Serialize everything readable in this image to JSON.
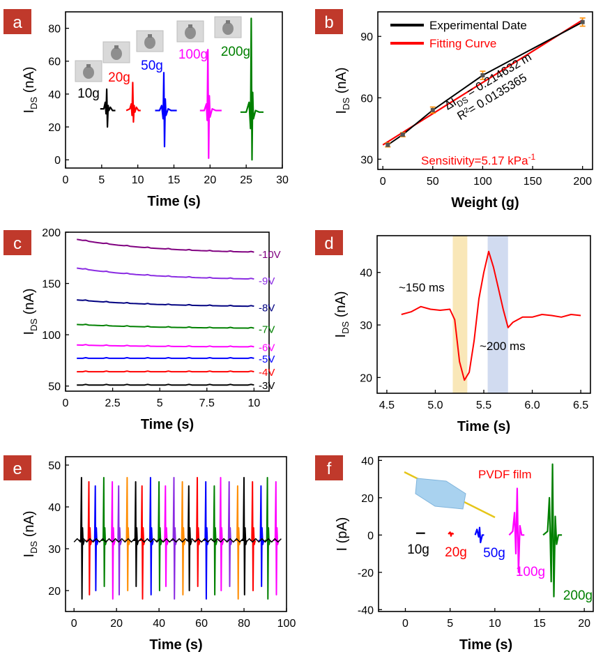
{
  "chart_data": [
    {
      "panel": "a",
      "type": "line",
      "xlabel": "Time (s)",
      "ylabel_main": "I",
      "ylabel_sub": "DS",
      "ylabel_unit": " (nA)",
      "xlim": [
        0,
        30
      ],
      "ylim": [
        -5,
        90
      ],
      "xticks": [
        "0",
        "5",
        "10",
        "15",
        "20",
        "25",
        "30"
      ],
      "xtick_values": [
        0,
        5,
        10,
        15,
        20,
        25,
        30
      ],
      "yticks": [
        "0",
        "20",
        "40",
        "60",
        "80"
      ],
      "ytick_values": [
        0,
        20,
        40,
        60,
        80
      ],
      "series": [
        {
          "name": "10g",
          "color": "#000000",
          "x": [
            4.8,
            5.3,
            5.5,
            5.6,
            5.7,
            5.8,
            5.9,
            6.0,
            6.2,
            6.5,
            6.9
          ],
          "y": [
            31,
            31,
            35,
            28,
            43,
            20,
            33,
            30,
            32,
            30,
            30
          ]
        },
        {
          "name": "20g",
          "color": "#ff0000",
          "x": [
            8.4,
            8.9,
            9.1,
            9.2,
            9.3,
            9.4,
            9.5,
            9.6,
            9.8,
            10.1,
            10.4
          ],
          "y": [
            30,
            31,
            34,
            27,
            47,
            23,
            33,
            29,
            32,
            30,
            30
          ]
        },
        {
          "name": "50g",
          "color": "#0000ff",
          "x": [
            12.4,
            13.0,
            13.3,
            13.5,
            13.6,
            13.7,
            13.8,
            13.9,
            14.2,
            14.6,
            15.4
          ],
          "y": [
            30,
            30,
            33,
            25,
            53,
            8,
            37,
            27,
            31,
            30,
            30
          ]
        },
        {
          "name": "100g",
          "color": "#ff00ff",
          "x": [
            18.6,
            19.2,
            19.5,
            19.6,
            19.7,
            19.8,
            19.9,
            20.0,
            20.3,
            20.8,
            21.6
          ],
          "y": [
            30,
            30,
            34,
            24,
            67,
            1,
            39,
            26,
            31,
            30,
            30
          ]
        },
        {
          "name": "200g",
          "color": "#008000",
          "x": [
            24.2,
            25.0,
            25.4,
            25.6,
            25.7,
            25.8,
            25.9,
            26.0,
            26.3,
            26.8,
            27.4
          ],
          "y": [
            29,
            29,
            35,
            19,
            86,
            0,
            41,
            25,
            30,
            29,
            29
          ]
        }
      ]
    },
    {
      "panel": "b",
      "type": "line",
      "xlabel": "Weight (g)",
      "ylabel_main": "I",
      "ylabel_sub": "DS",
      "ylabel_unit": " (nA)",
      "xlim": [
        -5,
        210
      ],
      "ylim": [
        25,
        102
      ],
      "xticks": [
        "0",
        "50",
        "100",
        "150",
        "200"
      ],
      "xtick_values": [
        0,
        50,
        100,
        150,
        200
      ],
      "yticks": [
        "30",
        "60",
        "90"
      ],
      "ytick_values": [
        30,
        60,
        90
      ],
      "series": [
        {
          "name": "Experimental  Date",
          "color": "#000000",
          "x": [
            5,
            20,
            50,
            100,
            200
          ],
          "y": [
            37,
            42,
            54,
            71,
            97
          ],
          "err": [
            1,
            1,
            1.5,
            2,
            2
          ]
        },
        {
          "name": "Fitting Curve",
          "color": "#ff0000",
          "x": [
            0,
            200
          ],
          "y": [
            37,
            98
          ]
        }
      ],
      "annotation_line1_main": "ΔI",
      "annotation_line1_sub": "DS",
      "annotation_line1_rest": " = 0.214632 m",
      "annotation_line2": "R²= 0.0135365",
      "sensitivity_main": "Sensitivity=5.17  kPa",
      "sensitivity_sup": "-1"
    },
    {
      "panel": "c",
      "type": "line",
      "xlabel": "Time (s)",
      "ylabel_main": "I",
      "ylabel_sub": "DS",
      "ylabel_unit": " (nA)",
      "xlim": [
        0,
        10.8
      ],
      "ylim": [
        45,
        200
      ],
      "xticks": [
        "0",
        "2.5",
        "5",
        "7.5",
        "10"
      ],
      "xtick_values": [
        0,
        2.5,
        5,
        7.5,
        10
      ],
      "yticks": [
        "50",
        "100",
        "150",
        "200"
      ],
      "ytick_values": [
        50,
        100,
        150,
        200
      ],
      "series": [
        {
          "name": "-10V",
          "color": "#800080",
          "start": 193,
          "end": 179
        },
        {
          "name": "-9V",
          "color": "#8a2be2",
          "start": 165,
          "end": 153
        },
        {
          "name": "-8V",
          "color": "#000080",
          "start": 134,
          "end": 127
        },
        {
          "name": "-7V",
          "color": "#008000",
          "start": 110,
          "end": 106
        },
        {
          "name": "-6V",
          "color": "#ff00ff",
          "start": 90,
          "end": 88
        },
        {
          "name": "-5V",
          "color": "#0000ff",
          "start": 77,
          "end": 77
        },
        {
          "name": "-4V",
          "color": "#ff0000",
          "start": 64,
          "end": 64
        },
        {
          "name": "-3V",
          "color": "#000000",
          "start": 51,
          "end": 51
        }
      ]
    },
    {
      "panel": "d",
      "type": "line",
      "xlabel": "Time (s)",
      "ylabel_main": "I",
      "ylabel_sub": "DS",
      "ylabel_unit": " (nA)",
      "xlim": [
        4.4,
        6.6
      ],
      "ylim": [
        17,
        47
      ],
      "xticks": [
        "4.5",
        "5.0",
        "5.5",
        "6.0",
        "6.5"
      ],
      "xtick_values": [
        4.5,
        5.0,
        5.5,
        6.0,
        6.5
      ],
      "yticks": [
        "20",
        "30",
        "40"
      ],
      "ytick_values": [
        20,
        30,
        40
      ],
      "series": [
        {
          "name": "",
          "color": "#ff0000",
          "x": [
            4.65,
            4.75,
            4.85,
            4.95,
            5.05,
            5.15,
            5.2,
            5.25,
            5.3,
            5.35,
            5.4,
            5.45,
            5.5,
            5.55,
            5.6,
            5.65,
            5.7,
            5.75,
            5.8,
            5.9,
            6.0,
            6.1,
            6.2,
            6.3,
            6.4,
            6.5
          ],
          "y": [
            32,
            32.5,
            33.5,
            33,
            32.8,
            33,
            31,
            23,
            19.5,
            21,
            27,
            35,
            40,
            44,
            41,
            37,
            33,
            29.5,
            30.5,
            31.5,
            31.5,
            32,
            31.8,
            31.5,
            32,
            31.8
          ]
        }
      ],
      "bands": [
        {
          "x0": 5.18,
          "x1": 5.33,
          "color": "#f8e4b0",
          "label": "~150 ms"
        },
        {
          "x0": 5.54,
          "x1": 5.75,
          "color": "#ccd7ee",
          "label": "~200 ms"
        }
      ]
    },
    {
      "panel": "e",
      "type": "line",
      "xlabel": "Time (s)",
      "ylabel_main": "I",
      "ylabel_sub": "DS",
      "ylabel_unit": " (nA)",
      "xlim": [
        -4,
        100
      ],
      "ylim": [
        15,
        52
      ],
      "xticks": [
        "0",
        "20",
        "40",
        "60",
        "80",
        "100"
      ],
      "xtick_values": [
        0,
        20,
        40,
        60,
        80,
        100
      ],
      "yticks": [
        "20",
        "30",
        "40",
        "50"
      ],
      "ytick_values": [
        20,
        30,
        40,
        50
      ],
      "baseline": 32,
      "spike_times": [
        3.5,
        7,
        10,
        14,
        18,
        21,
        25,
        29,
        32,
        36,
        40,
        43,
        47,
        51,
        54,
        58,
        62,
        66,
        69,
        73,
        77,
        80,
        84,
        88,
        91,
        95
      ],
      "spike_colors": [
        "#000000",
        "#ff0000",
        "#0000ff",
        "#008000",
        "#ff00ff",
        "#8a2be2",
        "#ff8c00"
      ],
      "spike_high": 47,
      "spike_low": 18
    },
    {
      "panel": "f",
      "type": "line",
      "xlabel": "Time (s)",
      "ylabel": "I (pA)",
      "xlim": [
        -3,
        21
      ],
      "ylim": [
        -41,
        42
      ],
      "xticks": [
        "0",
        "5",
        "10",
        "15",
        "20"
      ],
      "xtick_values": [
        0,
        5,
        10,
        15,
        20
      ],
      "yticks": [
        "-40",
        "-20",
        "0",
        "20",
        "40"
      ],
      "ytick_values": [
        -40,
        -20,
        0,
        20,
        40
      ],
      "inset_label": "PVDF film",
      "series": [
        {
          "name": "10g",
          "color": "#000000",
          "x": [
            1.2,
            2.2
          ],
          "y": [
            1,
            1
          ]
        },
        {
          "name": "20g",
          "color": "#ff0000",
          "x": [
            4.8,
            5.0,
            5.1,
            5.2,
            5.4
          ],
          "y": [
            0.5,
            1.5,
            -0.5,
            1,
            0.5
          ]
        },
        {
          "name": "50g",
          "color": "#0000ff",
          "x": [
            7.8,
            8.0,
            8.2,
            8.3,
            8.4,
            8.6,
            8.8
          ],
          "y": [
            0,
            3,
            -1,
            4,
            -4,
            0,
            0
          ]
        },
        {
          "name": "100g",
          "color": "#ff00ff",
          "x": [
            11.6,
            12.0,
            12.2,
            12.35,
            12.5,
            12.65,
            12.8,
            13.0,
            13.3
          ],
          "y": [
            0,
            2,
            12,
            -10,
            25,
            -20,
            5,
            0,
            0
          ]
        },
        {
          "name": "200g",
          "color": "#008000",
          "x": [
            15.4,
            15.9,
            16.1,
            16.3,
            16.45,
            16.6,
            16.75,
            16.9,
            17.1,
            17.5
          ],
          "y": [
            0,
            2,
            20,
            -25,
            38,
            -33,
            10,
            -5,
            0,
            0
          ]
        }
      ]
    }
  ],
  "panel_labels": [
    "a",
    "b",
    "c",
    "d",
    "e",
    "f"
  ]
}
